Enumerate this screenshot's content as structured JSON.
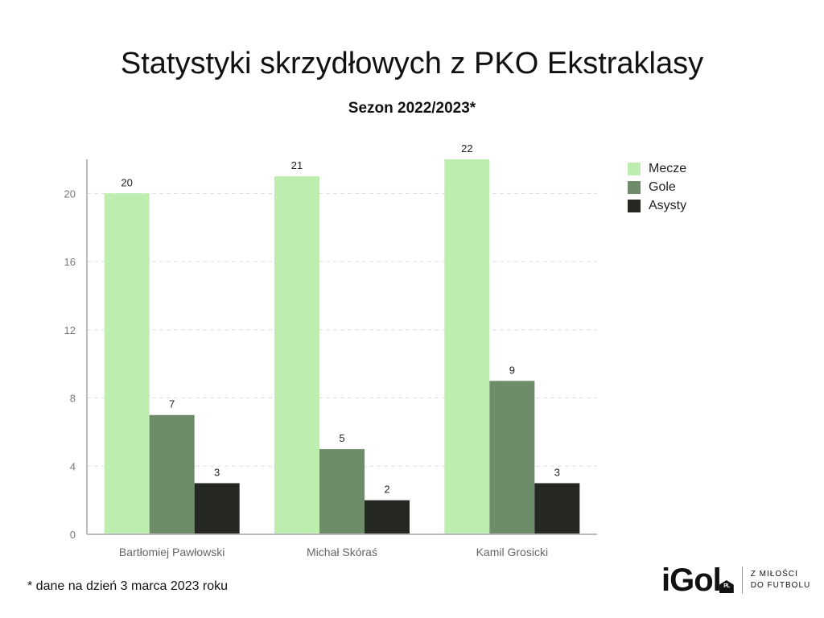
{
  "header": {
    "title": "Statystyki skrzydłowych z PKO Ekstraklasy",
    "subtitle": "Sezon 2022/2023*"
  },
  "chart_data": {
    "type": "bar",
    "title": "Statystyki skrzydłowych z PKO Ekstraklasy",
    "subtitle": "Sezon 2022/2023*",
    "xlabel": "",
    "ylabel": "",
    "categories": [
      "Bartłomiej Pawłowski",
      "Michał Skóraś",
      "Kamil Grosicki"
    ],
    "series": [
      {
        "name": "Mecze",
        "values": [
          20,
          21,
          22
        ],
        "color": "#bdeeb0"
      },
      {
        "name": "Gole",
        "values": [
          7,
          5,
          9
        ],
        "color": "#6e8c6a"
      },
      {
        "name": "Asysty",
        "values": [
          3,
          2,
          3
        ],
        "color": "#252822"
      }
    ],
    "ylim": [
      0,
      22
    ],
    "yticks": [
      0,
      4,
      8,
      12,
      16,
      20
    ],
    "grid": true,
    "legend": "top-right",
    "data_labels": true
  },
  "footnote": "* dane na dzień 3 marca 2023 roku",
  "brand": {
    "logo": "iGol",
    "badge": "PL",
    "tagline_line1": "Z MIŁOŚCI",
    "tagline_line2": "DO FUTBOLU"
  }
}
